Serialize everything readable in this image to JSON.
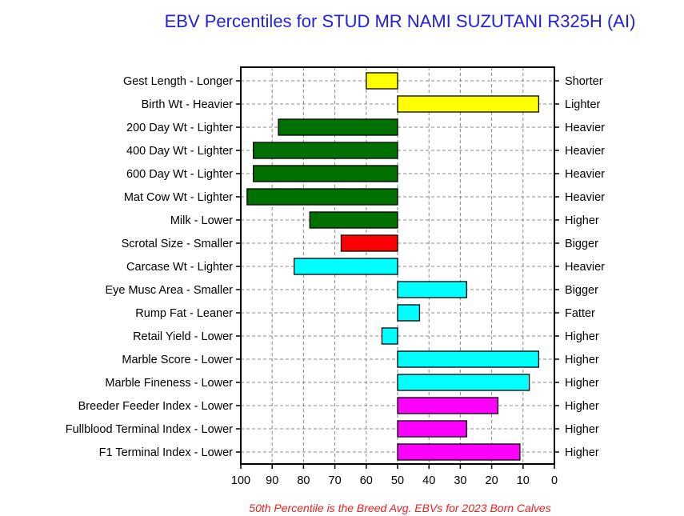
{
  "chart_data": {
    "type": "bar",
    "orientation": "horizontal",
    "title": "EBV Percentiles for STUD MR NAMI SUZUTANI R325H (AI)",
    "footnote": "50th Percentile is the Breed Avg. EBVs for 2023 Born Calves",
    "xlim": [
      100,
      0
    ],
    "baseline": 50,
    "x_ticks": [
      "100",
      "90",
      "80",
      "70",
      "60",
      "50",
      "40",
      "30",
      "20",
      "10",
      "0"
    ],
    "grid": true,
    "traits": [
      {
        "left": "Gest Length - Longer",
        "right": "Shorter",
        "value": 60,
        "color": "#ffff00"
      },
      {
        "left": "Birth Wt - Heavier",
        "right": "Lighter",
        "value": 5,
        "color": "#ffff00"
      },
      {
        "left": "200 Day Wt - Lighter",
        "right": "Heavier",
        "value": 88,
        "color": "#007000"
      },
      {
        "left": "400 Day Wt - Lighter",
        "right": "Heavier",
        "value": 96,
        "color": "#007000"
      },
      {
        "left": "600 Day Wt - Lighter",
        "right": "Heavier",
        "value": 96,
        "color": "#007000"
      },
      {
        "left": "Mat Cow Wt - Lighter",
        "right": "Heavier",
        "value": 98,
        "color": "#007000"
      },
      {
        "left": "Milk - Lower",
        "right": "Higher",
        "value": 78,
        "color": "#007000"
      },
      {
        "left": "Scrotal Size - Smaller",
        "right": "Bigger",
        "value": 68,
        "color": "#ff0000"
      },
      {
        "left": "Carcase Wt - Lighter",
        "right": "Heavier",
        "value": 83,
        "color": "#00ffff"
      },
      {
        "left": "Eye Musc Area - Smaller",
        "right": "Bigger",
        "value": 28,
        "color": "#00ffff"
      },
      {
        "left": "Rump Fat - Leaner",
        "right": "Fatter",
        "value": 43,
        "color": "#00ffff"
      },
      {
        "left": "Retail Yield - Lower",
        "right": "Higher",
        "value": 55,
        "color": "#00ffff"
      },
      {
        "left": "Marble Score - Lower",
        "right": "Higher",
        "value": 5,
        "color": "#00ffff"
      },
      {
        "left": "Marble Fineness - Lower",
        "right": "Higher",
        "value": 8,
        "color": "#00ffff"
      },
      {
        "left": "Breeder Feeder Index - Lower",
        "right": "Higher",
        "value": 18,
        "color": "#ff00ff"
      },
      {
        "left": "Fullblood Terminal Index - Lower",
        "right": "Higher",
        "value": 28,
        "color": "#ff00ff"
      },
      {
        "left": "F1 Terminal Index - Lower",
        "right": "Higher",
        "value": 11,
        "color": "#ff00ff"
      }
    ]
  }
}
